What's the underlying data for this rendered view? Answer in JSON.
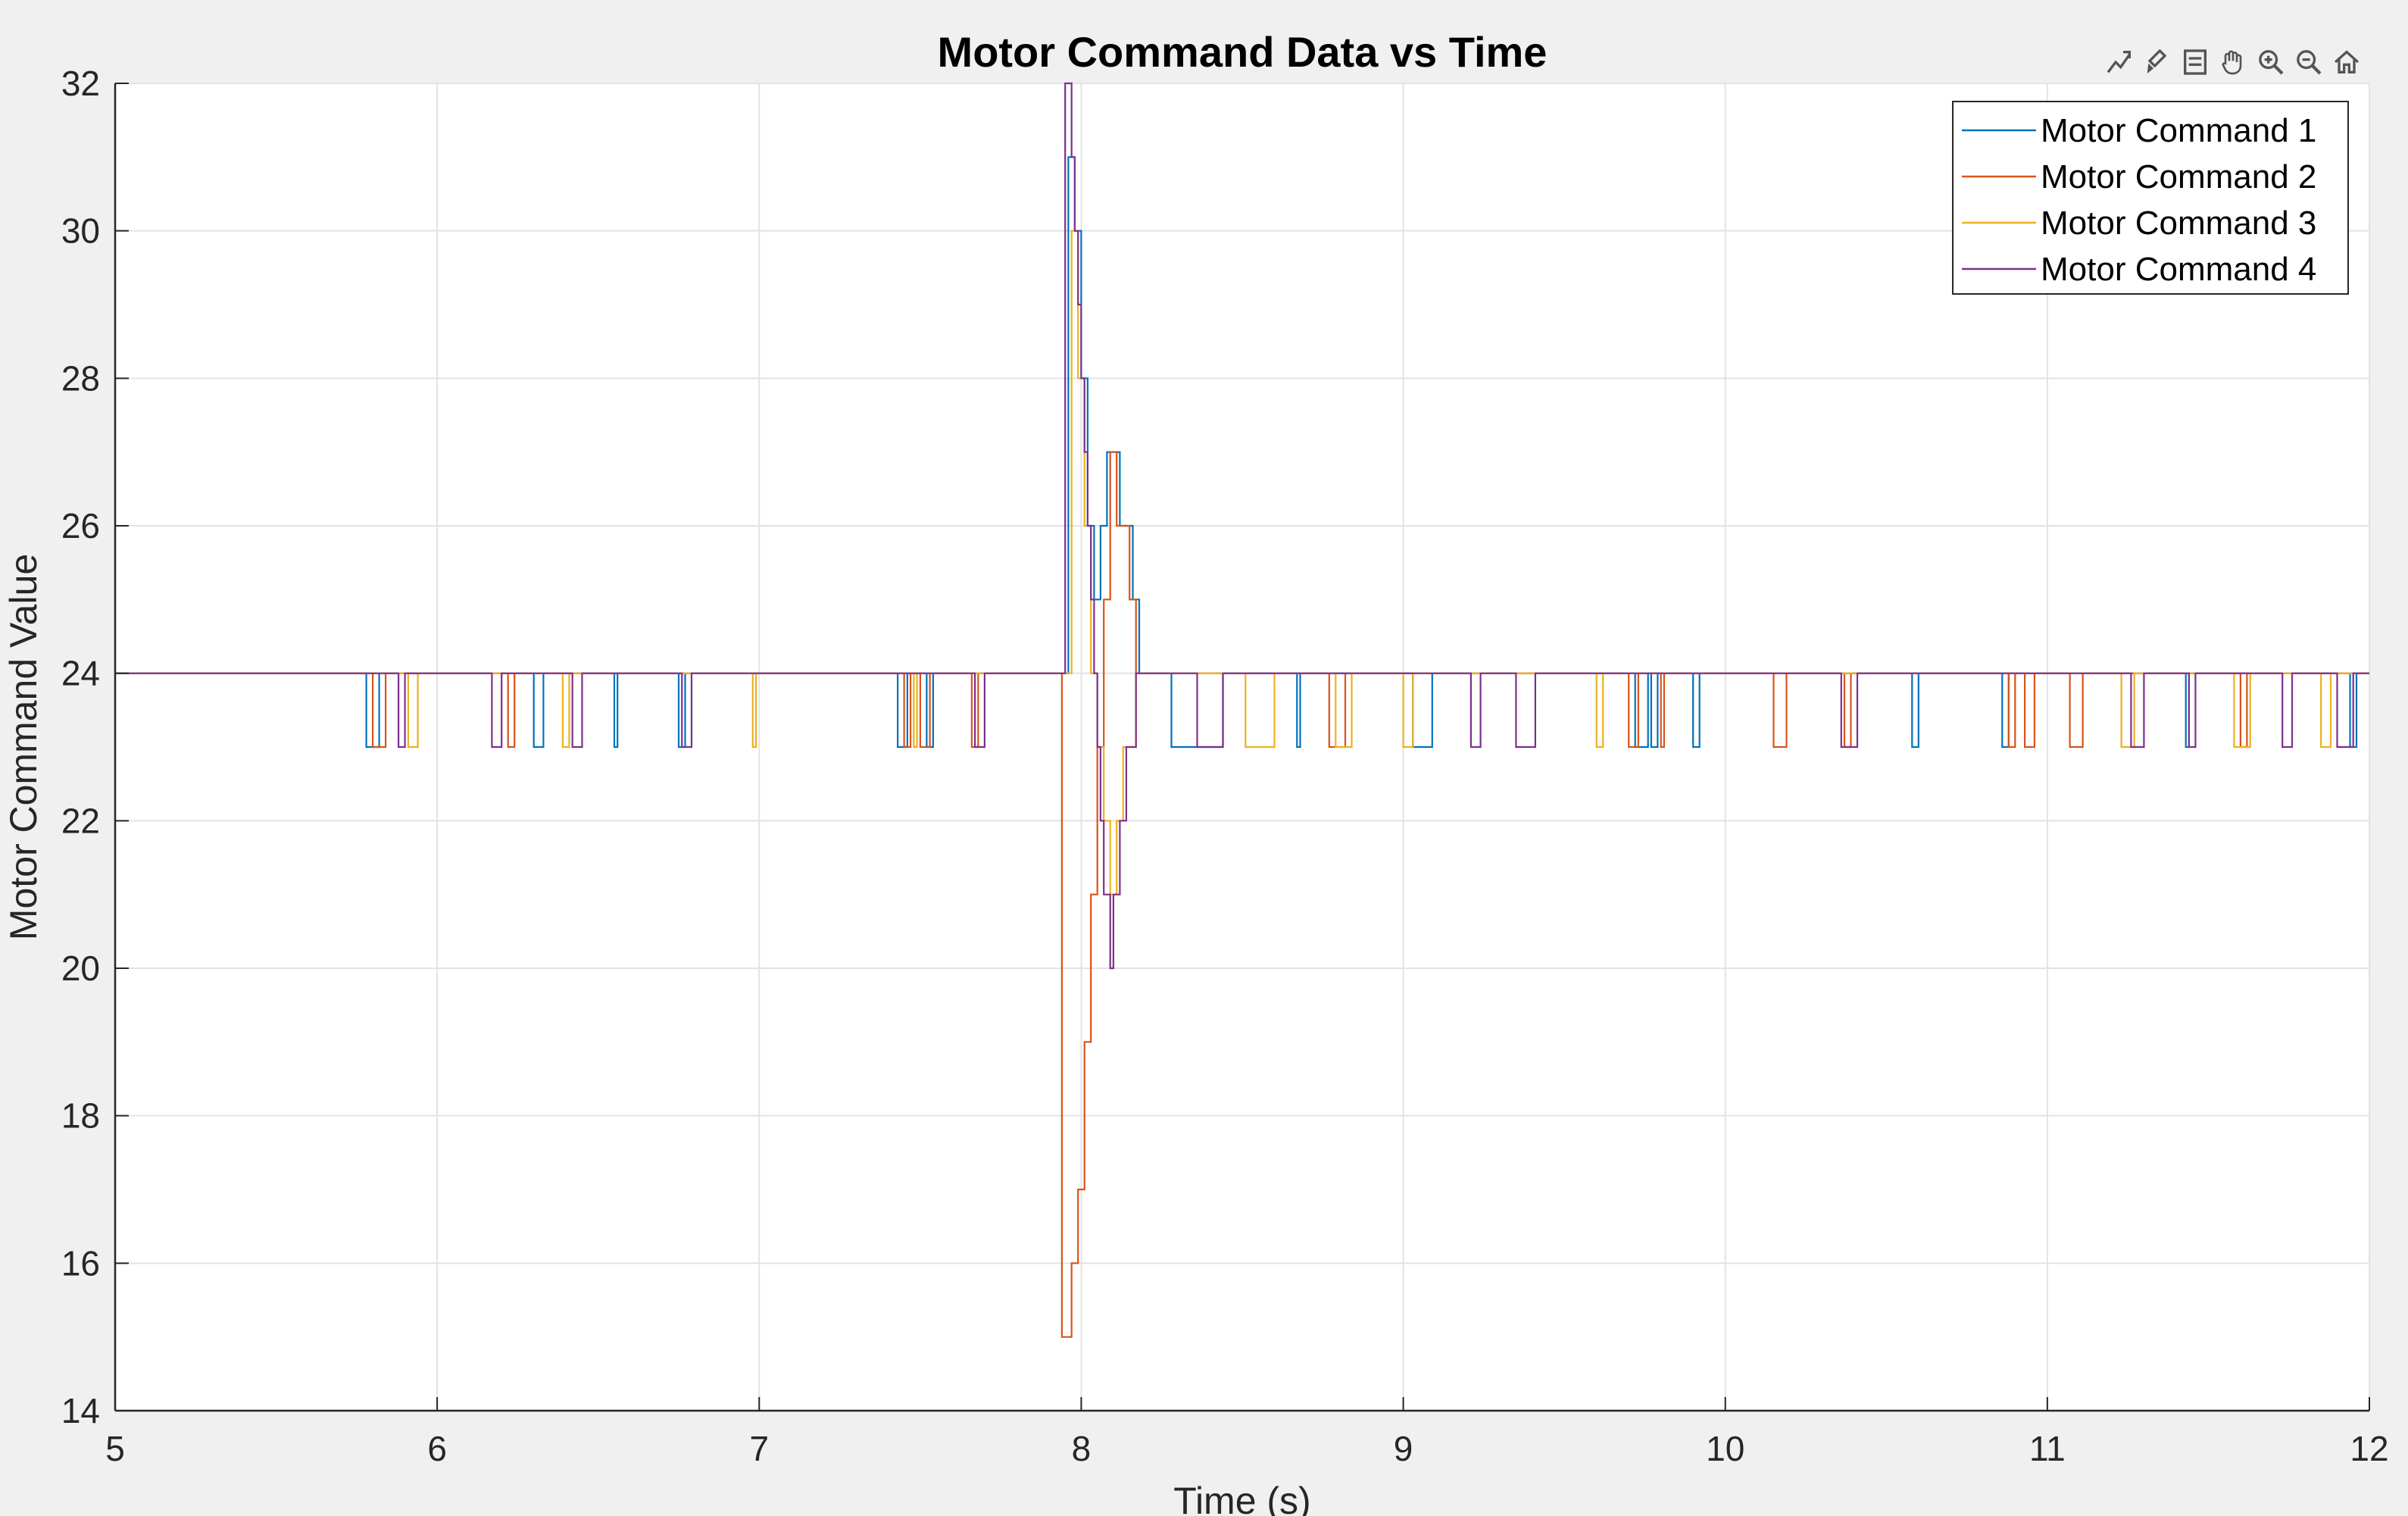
{
  "toolbar": {
    "icons": [
      "data-tips-icon",
      "brush-icon",
      "datatip-list-icon",
      "pan-hand-icon",
      "zoom-in-icon",
      "zoom-out-icon",
      "home-icon"
    ]
  },
  "chart_data": {
    "type": "line",
    "title": "Motor Command Data vs Time",
    "xlabel": "Time (s)",
    "ylabel": "Motor Command Value",
    "xlim": [
      5,
      12
    ],
    "ylim": [
      14,
      32
    ],
    "xticks": [
      5,
      6,
      7,
      8,
      9,
      10,
      11,
      12
    ],
    "yticks": [
      14,
      16,
      18,
      20,
      22,
      24,
      26,
      28,
      30,
      32
    ],
    "grid": true,
    "legend_position": "top-right",
    "series": [
      {
        "name": "Motor Command 1",
        "color": "#0072BD",
        "pulses": [
          [
            5.78,
            5.82
          ],
          [
            6.3,
            6.33
          ],
          [
            6.55,
            6.56
          ],
          [
            6.75,
            6.77
          ],
          [
            7.43,
            7.46
          ],
          [
            7.52,
            7.54
          ],
          [
            8.28,
            8.44
          ],
          [
            8.67,
            8.68
          ],
          [
            9.03,
            9.09
          ],
          [
            9.72,
            9.76
          ],
          [
            9.77,
            9.79
          ],
          [
            9.9,
            9.92
          ],
          [
            10.58,
            10.6
          ],
          [
            10.86,
            10.88
          ],
          [
            11.43,
            11.44
          ],
          [
            11.94,
            11.96
          ]
        ],
        "transient": [
          [
            7.92,
            24
          ],
          [
            7.96,
            31
          ],
          [
            7.98,
            30
          ],
          [
            8.0,
            28
          ],
          [
            8.02,
            26
          ],
          [
            8.04,
            25
          ],
          [
            8.06,
            26
          ],
          [
            8.08,
            27
          ],
          [
            8.12,
            26
          ],
          [
            8.16,
            25
          ],
          [
            8.18,
            24
          ]
        ]
      },
      {
        "name": "Motor Command 2",
        "color": "#D95319",
        "pulses": [
          [
            5.8,
            5.84
          ],
          [
            6.22,
            6.24
          ],
          [
            7.45,
            7.47
          ],
          [
            7.5,
            7.53
          ],
          [
            7.66,
            7.68
          ],
          [
            8.77,
            8.82
          ],
          [
            9.7,
            9.73
          ],
          [
            9.8,
            9.81
          ],
          [
            10.15,
            10.19
          ],
          [
            10.37,
            10.39
          ],
          [
            10.88,
            10.9
          ],
          [
            10.93,
            10.96
          ],
          [
            11.07,
            11.11
          ],
          [
            11.6,
            11.62
          ]
        ],
        "transient": [
          [
            7.92,
            24
          ],
          [
            7.94,
            15
          ],
          [
            7.97,
            16
          ],
          [
            7.99,
            17
          ],
          [
            8.01,
            19
          ],
          [
            8.03,
            21
          ],
          [
            8.05,
            23
          ],
          [
            8.07,
            25
          ],
          [
            8.09,
            27
          ],
          [
            8.11,
            26
          ],
          [
            8.15,
            25
          ],
          [
            8.17,
            24
          ]
        ]
      },
      {
        "name": "Motor Command 3",
        "color": "#EDB120",
        "pulses": [
          [
            5.91,
            5.94
          ],
          [
            6.39,
            6.41
          ],
          [
            6.98,
            6.99
          ],
          [
            7.48,
            7.49
          ],
          [
            8.51,
            8.6
          ],
          [
            8.79,
            8.84
          ],
          [
            9.0,
            9.03
          ],
          [
            9.6,
            9.62
          ],
          [
            11.23,
            11.27
          ],
          [
            11.58,
            11.63
          ],
          [
            11.85,
            11.88
          ]
        ],
        "transient": [
          [
            7.95,
            24
          ],
          [
            7.97,
            30
          ],
          [
            7.99,
            28
          ],
          [
            8.01,
            26
          ],
          [
            8.03,
            24
          ],
          [
            8.05,
            23
          ],
          [
            8.07,
            22
          ],
          [
            8.09,
            21
          ],
          [
            8.11,
            22
          ],
          [
            8.13,
            23
          ],
          [
            8.17,
            24
          ]
        ]
      },
      {
        "name": "Motor Command 4",
        "color": "#7E2F8E",
        "pulses": [
          [
            5.88,
            5.9
          ],
          [
            6.17,
            6.2
          ],
          [
            6.42,
            6.45
          ],
          [
            6.76,
            6.79
          ],
          [
            7.67,
            7.7
          ],
          [
            8.36,
            8.44
          ],
          [
            9.21,
            9.24
          ],
          [
            9.35,
            9.41
          ],
          [
            10.36,
            10.41
          ],
          [
            11.26,
            11.3
          ],
          [
            11.44,
            11.46
          ],
          [
            11.73,
            11.76
          ],
          [
            11.9,
            11.95
          ]
        ],
        "transient": [
          [
            7.94,
            24
          ],
          [
            7.95,
            32
          ],
          [
            7.97,
            31
          ],
          [
            7.98,
            30
          ],
          [
            7.99,
            29
          ],
          [
            8.0,
            28
          ],
          [
            8.01,
            27
          ],
          [
            8.02,
            26
          ],
          [
            8.03,
            25
          ],
          [
            8.04,
            24
          ],
          [
            8.05,
            23
          ],
          [
            8.06,
            22
          ],
          [
            8.07,
            21
          ],
          [
            8.09,
            20
          ],
          [
            8.1,
            21
          ],
          [
            8.12,
            22
          ],
          [
            8.14,
            23
          ],
          [
            8.17,
            24
          ]
        ]
      }
    ]
  }
}
